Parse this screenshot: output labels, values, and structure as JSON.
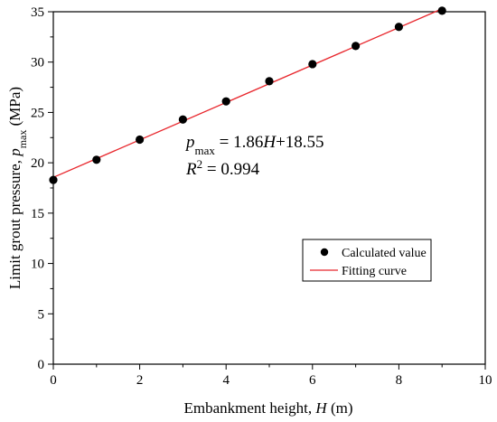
{
  "chart_data": {
    "type": "scatter",
    "xlabel": {
      "main": "Embankment height, ",
      "var": "H",
      "unit": " (m)"
    },
    "ylabel": {
      "main": "Limit grout pressure, ",
      "var": "p",
      "sub": "max",
      "unit": " (MPa)"
    },
    "xlim": [
      0,
      10
    ],
    "ylim": [
      0,
      35
    ],
    "x_ticks": [
      "0",
      "2",
      "4",
      "6",
      "8",
      "10"
    ],
    "y_ticks": [
      "0",
      "5",
      "10",
      "15",
      "20",
      "25",
      "30",
      "35"
    ],
    "x_tick_values": [
      0,
      2,
      4,
      6,
      8,
      10
    ],
    "y_tick_values": [
      0,
      5,
      10,
      15,
      20,
      25,
      30,
      35
    ],
    "grid": false,
    "legend_position": "bottom-right",
    "series": [
      {
        "name": "Calculated value",
        "kind": "scatter",
        "color": "#000000",
        "x": [
          0,
          1,
          2,
          3,
          4,
          5,
          6,
          7,
          8,
          9
        ],
        "y": [
          18.3,
          20.3,
          22.3,
          24.3,
          26.1,
          28.1,
          29.8,
          31.6,
          33.5,
          35.1
        ]
      },
      {
        "name": "Fitting curve",
        "kind": "line",
        "color": "#e8262c",
        "x": [
          0,
          9
        ],
        "y": [
          18.55,
          35.29
        ]
      }
    ],
    "annotation": {
      "eq_var": "p",
      "eq_sub": "max",
      "eq_rest_1": " = 1.86",
      "eq_var2": "H",
      "eq_rest_2": "+18.55",
      "r2_var": "R",
      "r2_sup": "2",
      "r2_rest": " = 0.994"
    }
  }
}
